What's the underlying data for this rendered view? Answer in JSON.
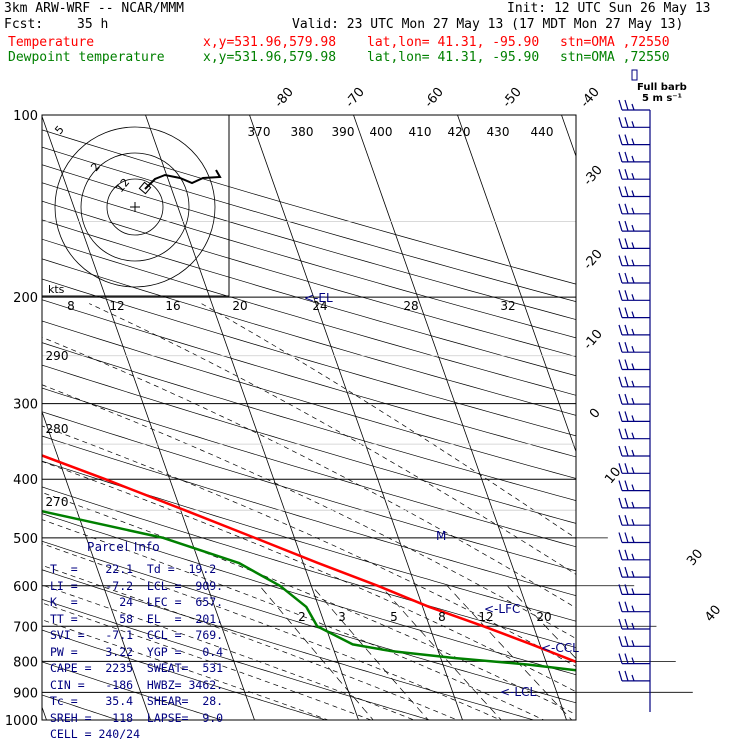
{
  "header": {
    "model": "3km ARW-WRF -- NCAR/MMM",
    "init": "Init: 12 UTC Sun 26 May 13",
    "fcst_label": "Fcst:",
    "fcst_value": "35 h",
    "valid": "Valid: 23 UTC Mon 27 May 13 (17 MDT Mon 27 May 13)",
    "temp_label": "Temperature",
    "dew_label": "Dewpoint temperature",
    "xy": "x,y=531.96,579.98",
    "latlon": "lat,lon= 41.31, -95.90",
    "stn": "stn=OMA ,72550",
    "full_barb": "Full barb",
    "full_barb_units": "5 m s⁻¹"
  },
  "colors": {
    "temperature": "#ff0000",
    "dewpoint": "#008000",
    "label_blue": "#000080",
    "header_red": "#ff0000",
    "header_green": "#008000"
  },
  "chart_data": {
    "type": "line",
    "subtype": "skew-T log-p sounding",
    "pressure_axis": {
      "ticks": [
        100,
        200,
        300,
        400,
        500,
        600,
        700,
        800,
        900,
        1000
      ],
      "range": [
        1000,
        100
      ]
    },
    "isotherm_labels": [
      "-80",
      "-70",
      "-60",
      "-50",
      "-40",
      "-30",
      "-20",
      "-10",
      "0",
      "10",
      "30",
      "40"
    ],
    "isotherm_values": [
      -80,
      -70,
      -60,
      -50,
      -40,
      -30,
      -20,
      -10,
      0,
      10,
      30,
      40
    ],
    "theta_labels": [
      "370",
      "380",
      "390",
      "400",
      "410",
      "420",
      "430",
      "440"
    ],
    "theta_values": [
      370,
      380,
      390,
      400,
      410,
      420,
      430,
      440
    ],
    "theta_left_labels": [
      "290",
      "280",
      "270"
    ],
    "mixing_ratio_labels": [
      "2",
      "3",
      "5",
      "8",
      "12",
      "20"
    ],
    "mixing_ratio_values": [
      2,
      3,
      5,
      8,
      12,
      20
    ],
    "series": [
      {
        "name": "Temperature",
        "color": "#ff0000",
        "points": [
          [
            1000,
            24.5
          ],
          [
            975,
            22.8
          ],
          [
            950,
            21.6
          ],
          [
            925,
            20.3
          ],
          [
            900,
            18.6
          ],
          [
            875,
            17.4
          ],
          [
            850,
            16.4
          ],
          [
            800,
            12.8
          ],
          [
            750,
            9.2
          ],
          [
            700,
            5.2
          ],
          [
            650,
            0.6
          ],
          [
            600,
            -3.6
          ],
          [
            550,
            -8.6
          ],
          [
            500,
            -13.8
          ],
          [
            450,
            -19.6
          ],
          [
            400,
            -26.2
          ],
          [
            350,
            -34.0
          ],
          [
            300,
            -43.6
          ],
          [
            275,
            -49.6
          ],
          [
            250,
            -55.2
          ],
          [
            225,
            -58.8
          ],
          [
            200,
            -58.4
          ],
          [
            175,
            -59.0
          ],
          [
            150,
            -61.8
          ],
          [
            125,
            -65.8
          ],
          [
            100,
            -70.8
          ]
        ]
      },
      {
        "name": "Dewpoint temperature",
        "color": "#008000",
        "points": [
          [
            960,
            12.8
          ],
          [
            940,
            15.6
          ],
          [
            920,
            16.4
          ],
          [
            890,
            16.9
          ],
          [
            860,
            15.8
          ],
          [
            830,
            13.2
          ],
          [
            810,
            8.2
          ],
          [
            790,
            1.4
          ],
          [
            770,
            -4.4
          ],
          [
            750,
            -8.0
          ],
          [
            700,
            -10.8
          ],
          [
            650,
            -11.2
          ],
          [
            600,
            -13.0
          ],
          [
            550,
            -16.2
          ],
          [
            500,
            -22.6
          ],
          [
            450,
            -33.8
          ],
          [
            400,
            -45.4
          ],
          [
            375,
            -51.6
          ],
          [
            350,
            -54.5
          ],
          [
            300,
            -61.0
          ],
          [
            250,
            -68.2
          ],
          [
            200,
            -73.6
          ],
          [
            175,
            -76.4
          ],
          [
            150,
            -80.4
          ],
          [
            125,
            -81.6
          ],
          [
            100,
            -83.2
          ]
        ]
      }
    ],
    "annotations": [
      "<-LFC",
      "<-CCL",
      "<-LCL",
      "<-EL",
      "M"
    ],
    "hodograph": {
      "speed_unit": "kts",
      "axis_labels": [
        "8",
        "12",
        "16",
        "20",
        "24",
        "28",
        "32"
      ],
      "ring_labels": [
        "5",
        "2",
        "12"
      ]
    },
    "barb_count": 34
  },
  "parcel_info": {
    "title": "Parcel Info",
    "rows": [
      "T  =    22.1  Td =  19.2",
      "LI =    -7.2  LCL =  909.",
      "K  =      24  LFC =  657.",
      "TT =      58  EL  =  201.",
      "SVI =   -7.1  CCL =  769.",
      "PW =    3.22  YGP =   0.4",
      "CAPE =  2235  SWEAT=  531",
      "CIN =   -186  HWBZ= 3462.",
      "Tc =    35.4  SHEAR=  28.",
      "SREH =   118  LAPSE=  9.0",
      "CELL = 240/24"
    ]
  }
}
